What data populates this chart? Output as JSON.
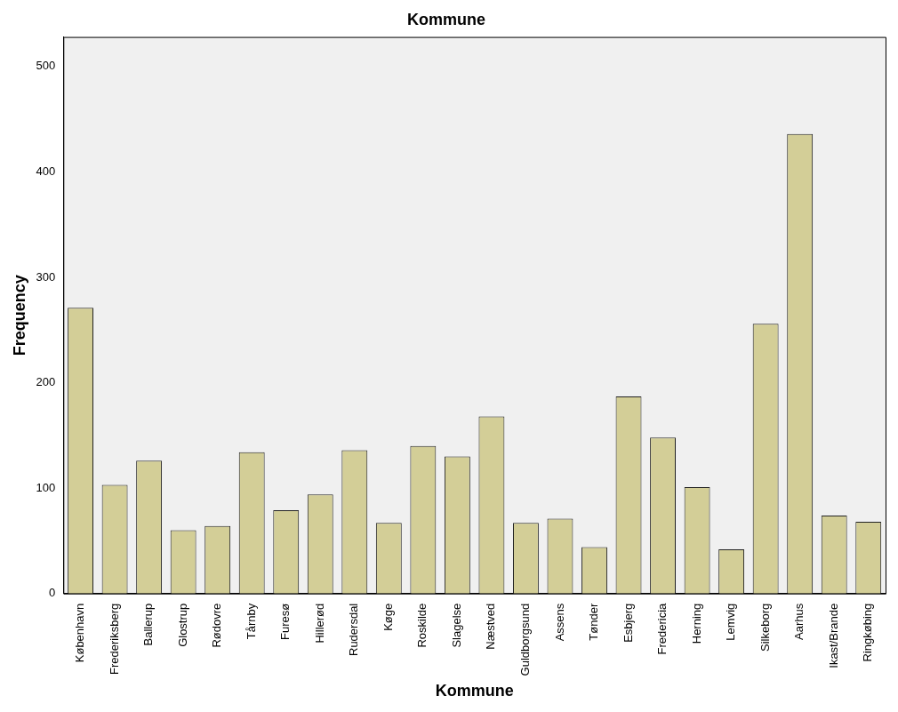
{
  "chart_data": {
    "type": "bar",
    "title": "Kommune",
    "xlabel": "Kommune",
    "ylabel": "Frequency",
    "categories": [
      "København",
      "Frederiksberg",
      "Ballerup",
      "Glostrup",
      "Rødovre",
      "Tårnby",
      "Furesø",
      "Hillerød",
      "Rudersdal",
      "Køge",
      "Roskilde",
      "Slagelse",
      "Næstved",
      "Guldborgsund",
      "Assens",
      "Tønder",
      "Esbjerg",
      "Fredericia",
      "Herning",
      "Lemvig",
      "Silkeborg",
      "Aarhus",
      "Ikast/Brande",
      "Ringkøbing"
    ],
    "values": [
      271,
      103,
      126,
      60,
      64,
      134,
      79,
      94,
      136,
      67,
      140,
      130,
      168,
      67,
      71,
      44,
      187,
      148,
      101,
      42,
      256,
      436,
      74,
      68
    ],
    "color": "#d3ce97",
    "ylim": [
      0,
      528
    ],
    "yticks": [
      0,
      100,
      200,
      300,
      400,
      500
    ],
    "grid": false,
    "legend": false
  }
}
